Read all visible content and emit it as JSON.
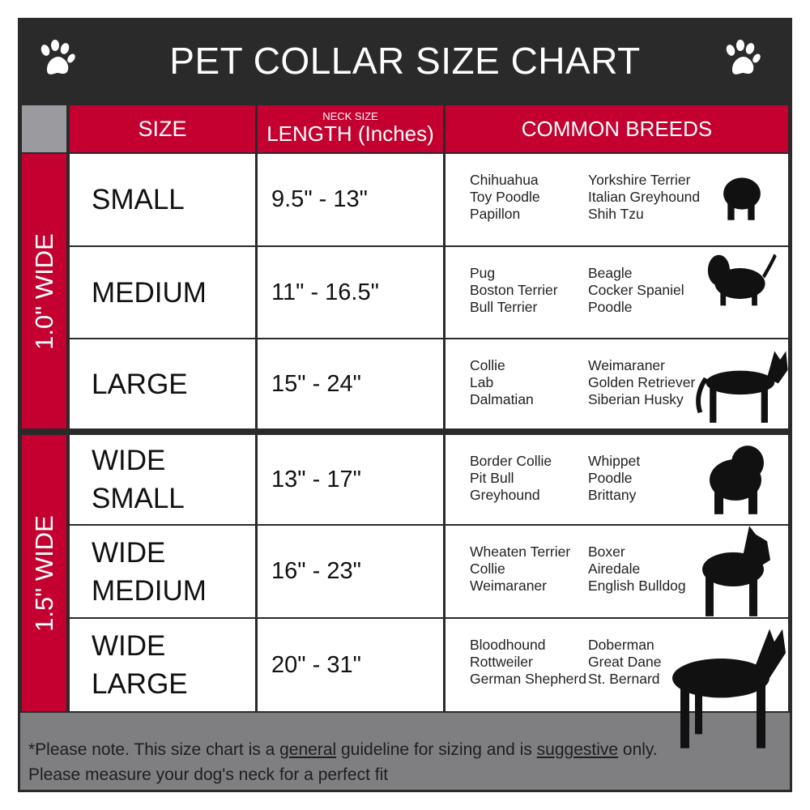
{
  "title": "PET COLLAR SIZE CHART",
  "icons": {
    "left": "paw-icon",
    "right": "paw-icon"
  },
  "colors": {
    "header": "#2a2a2a",
    "accent": "#c3002f",
    "footer": "#7f7f82",
    "corner": "#9b9b9f"
  },
  "headers": {
    "size": "SIZE",
    "length_sub": "NECK SIZE",
    "length": "LENGTH (Inches)",
    "breeds": "COMMON BREEDS"
  },
  "groups": [
    {
      "label": "1.0\" WIDE"
    },
    {
      "label": "1.5\" WIDE"
    }
  ],
  "rows": [
    {
      "size": "SMALL",
      "length": "9.5\" - 13\"",
      "breeds_a": [
        "Chihuahua",
        "Toy Poodle",
        "Papillon"
      ],
      "breeds_b": [
        "Yorkshire Terrier",
        "Italian Greyhound",
        "Shih Tzu"
      ]
    },
    {
      "size": "MEDIUM",
      "length": "11\" - 16.5\"",
      "breeds_a": [
        "Pug",
        "Boston Terrier",
        "Bull Terrier"
      ],
      "breeds_b": [
        "Beagle",
        "Cocker Spaniel",
        "Poodle"
      ]
    },
    {
      "size": "LARGE",
      "length": "15\" - 24\"",
      "breeds_a": [
        "Collie",
        "Lab",
        "Dalmatian"
      ],
      "breeds_b": [
        "Weimaraner",
        "Golden Retriever",
        "Siberian Husky"
      ]
    },
    {
      "size": "WIDE SMALL",
      "length": "13\" - 17\"",
      "breeds_a": [
        "Border Collie",
        "Pit Bull",
        "Greyhound"
      ],
      "breeds_b": [
        "Whippet",
        "Poodle",
        "Brittany"
      ]
    },
    {
      "size": "WIDE MEDIUM",
      "length": "16\" - 23\"",
      "breeds_a": [
        "Wheaten Terrier",
        "Collie",
        "Weimaraner"
      ],
      "breeds_b": [
        "Boxer",
        "Airedale",
        "English Bulldog"
      ]
    },
    {
      "size": "WIDE LARGE",
      "length": "20\" - 31\"",
      "breeds_a": [
        "Bloodhound",
        "Rottweiler",
        "German Shepherd"
      ],
      "breeds_b": [
        "Doberman",
        "Great Dane",
        "St. Bernard"
      ]
    }
  ],
  "footer": {
    "p1": "*Please note. This size chart is a ",
    "u1": "general",
    "p2": " guideline for sizing and is ",
    "u2": "suggestive",
    "p3": " only.",
    "line2": "Please measure your dog's neck for a perfect fit"
  }
}
